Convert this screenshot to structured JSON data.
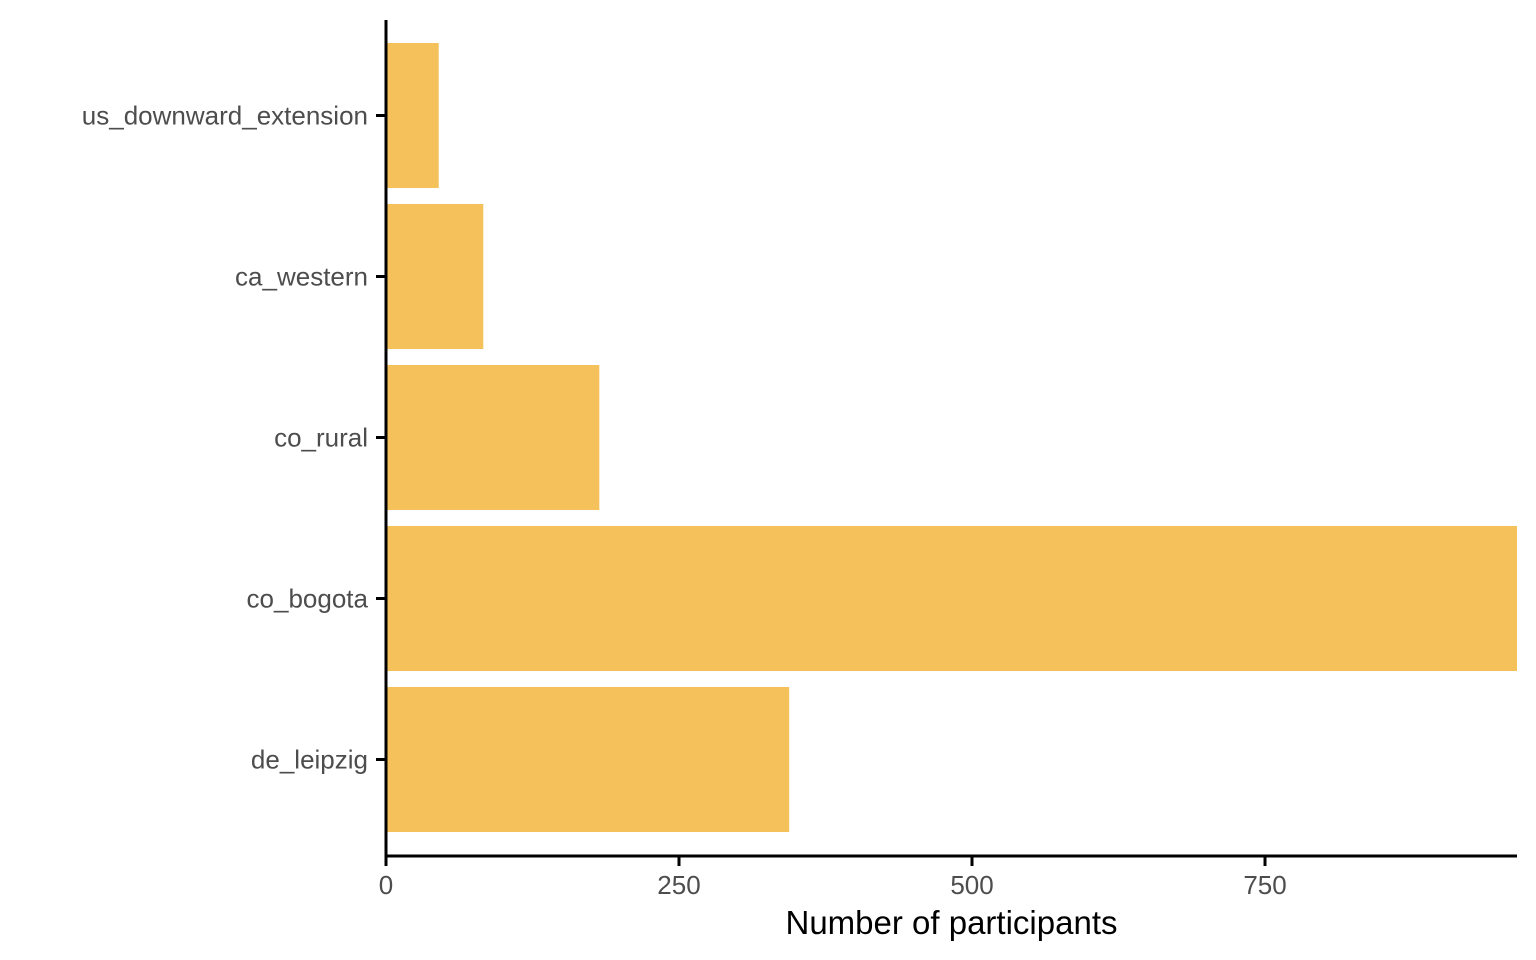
{
  "chart_data": {
    "type": "bar",
    "orientation": "horizontal",
    "categories": [
      "us_downward_extension",
      "ca_western",
      "co_rural",
      "co_bogota",
      "de_leipzig"
    ],
    "values": [
      45,
      83,
      182,
      965,
      344
    ],
    "xlabel": "Number of participants",
    "ylabel": "",
    "xlim": [
      0,
      965
    ],
    "xticks": [
      0,
      250,
      500,
      750
    ],
    "xtick_labels": [
      "0",
      "250",
      "500",
      "750"
    ],
    "bar_color": "#F4C15B",
    "axis_color": "#000000",
    "grid": false,
    "legend": "none"
  }
}
